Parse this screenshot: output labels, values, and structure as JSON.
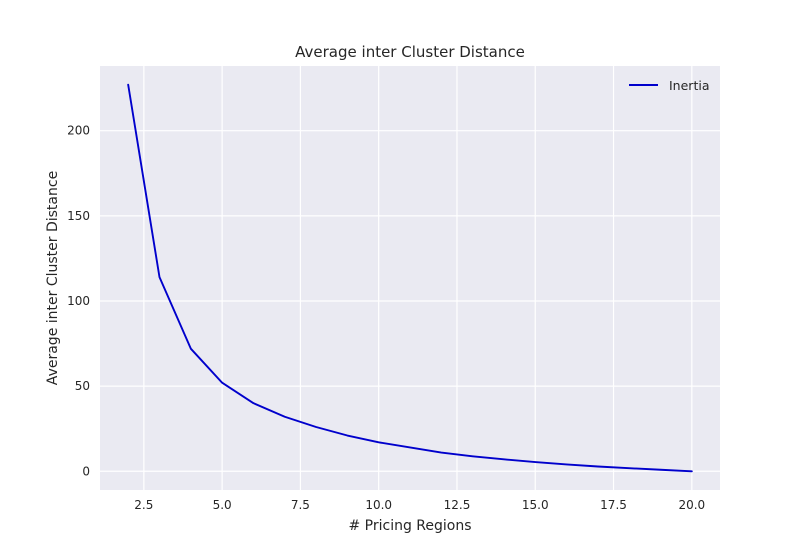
{
  "chart_data": {
    "type": "line",
    "title": "Average inter Cluster Distance",
    "xlabel": "# Pricing Regions",
    "ylabel": "Average inter Cluster Distance",
    "xlim": [
      1.1,
      20.9
    ],
    "ylim": [
      -11,
      238
    ],
    "x_ticks": [
      2.5,
      5.0,
      7.5,
      10.0,
      12.5,
      15.0,
      17.5,
      20.0
    ],
    "x_tick_labels": [
      "2.5",
      "5.0",
      "7.5",
      "10.0",
      "12.5",
      "15.0",
      "17.5",
      "20.0"
    ],
    "y_ticks": [
      0,
      50,
      100,
      150,
      200
    ],
    "y_tick_labels": [
      "0",
      "50",
      "100",
      "150",
      "200"
    ],
    "grid": true,
    "legend_position": "top-right",
    "colors": {
      "plot_background": "#eaeaf2",
      "grid": "#ffffff",
      "series": "#0000cc",
      "text": "#262626"
    },
    "series": [
      {
        "name": "Inertia",
        "x": [
          2,
          3,
          4,
          5,
          6,
          7,
          8,
          9,
          10,
          11,
          12,
          13,
          14,
          15,
          16,
          17,
          18,
          19,
          20
        ],
        "y": [
          227,
          114,
          72,
          52,
          40,
          32,
          26,
          21,
          17,
          14,
          11,
          8.8,
          7,
          5.4,
          4,
          2.8,
          1.8,
          0.9,
          0
        ]
      }
    ]
  }
}
